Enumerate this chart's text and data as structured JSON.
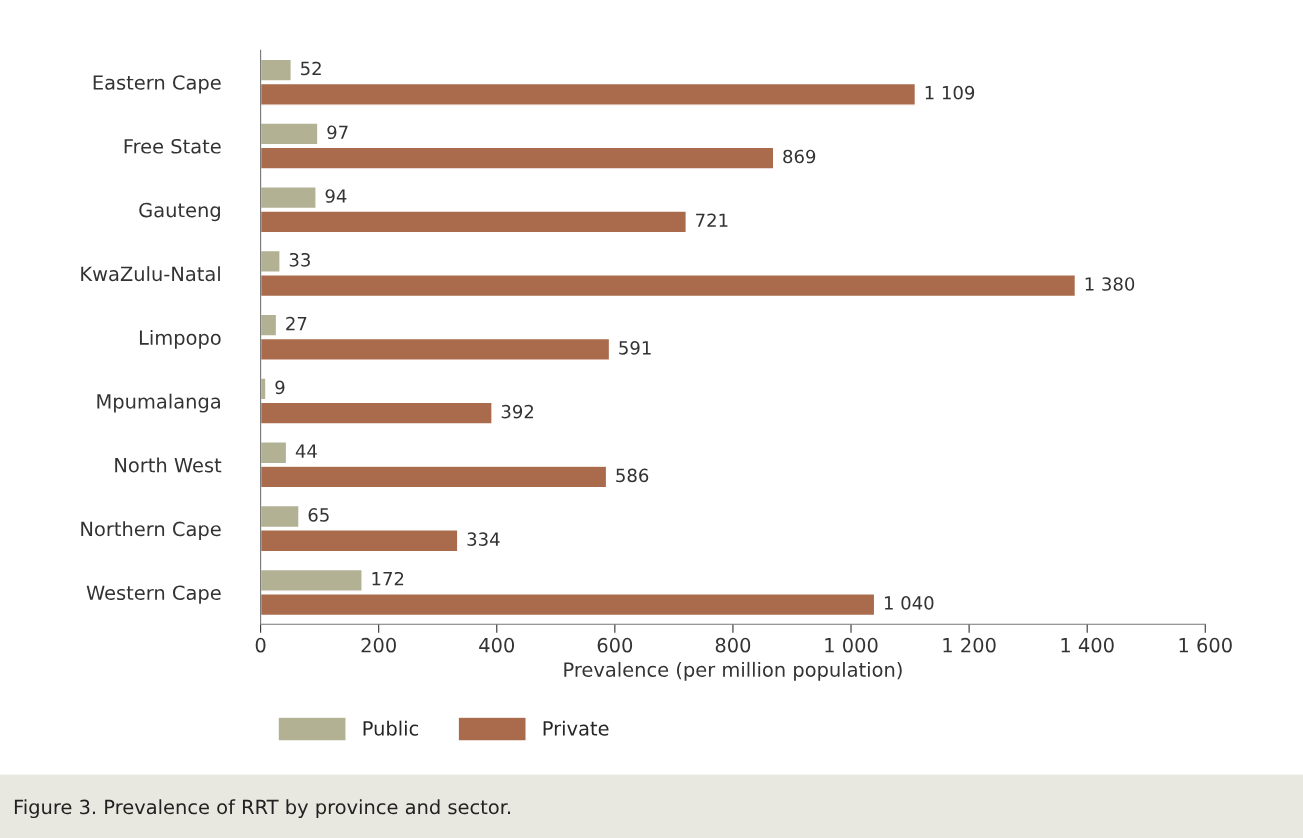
{
  "chart_data": {
    "type": "bar",
    "orientation": "horizontal",
    "categories": [
      "Eastern Cape",
      "Free State",
      "Gauteng",
      "KwaZulu-Natal",
      "Limpopo",
      "Mpumalanga",
      "North West",
      "Northern Cape",
      "Western Cape"
    ],
    "series": [
      {
        "name": "Public",
        "color": "#b3b194",
        "values": [
          52,
          97,
          94,
          33,
          27,
          9,
          44,
          65,
          172
        ],
        "value_labels": [
          "52",
          "97",
          "94",
          "33",
          "27",
          "9",
          "44",
          "65",
          "172"
        ]
      },
      {
        "name": "Private",
        "color": "#a96b4c",
        "values": [
          1109,
          869,
          721,
          1380,
          591,
          392,
          586,
          334,
          1040
        ],
        "value_labels": [
          "1 109",
          "869",
          "721",
          "1 380",
          "591",
          "392",
          "586",
          "334",
          "1 040"
        ]
      }
    ],
    "xlabel": "Prevalence (per million population)",
    "xlim": [
      0,
      1600
    ],
    "xticks": [
      0,
      200,
      400,
      600,
      800,
      {
        "value": 1000,
        "label": "1 000"
      },
      {
        "value": 1200,
        "label": "1 200"
      },
      {
        "value": 1400,
        "label": "1 400"
      },
      {
        "value": 1600,
        "label": "1 600"
      }
    ],
    "legend": "bottom",
    "grid": false,
    "annotations": [
      "Figure 3. Prevalence of RRT by province and sector."
    ]
  }
}
